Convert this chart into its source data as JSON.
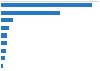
{
  "values": [
    6200,
    4030,
    820,
    540,
    430,
    380,
    310,
    250,
    130
  ],
  "bar_color": "#2878c8",
  "background_color": "#ffffff",
  "border_color": "#c8c8c8",
  "figsize": [
    1.0,
    0.71
  ],
  "dpi": 100,
  "bar_height": 0.55
}
